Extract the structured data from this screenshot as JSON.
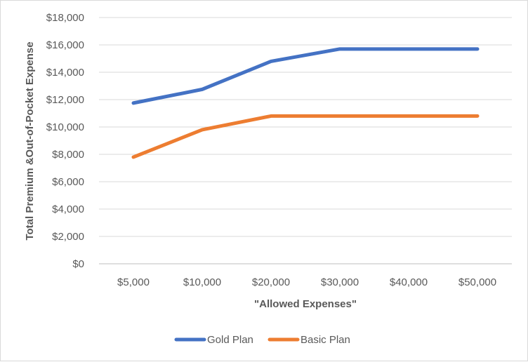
{
  "chart_data": {
    "type": "line",
    "title": "",
    "xlabel": "\"Allowed Expenses\"",
    "ylabel": "Total Premium &Out-of-Pocket Expense",
    "categories": [
      "$5,000",
      "$10,000",
      "$20,000",
      "$30,000",
      "$40,000",
      "$50,000"
    ],
    "y_ticks": [
      "$0",
      "$2,000",
      "$4,000",
      "$6,000",
      "$8,000",
      "$10,000",
      "$12,000",
      "$14,000",
      "$16,000",
      "$18,000"
    ],
    "ylim": [
      0,
      18000
    ],
    "grid": true,
    "legend_position": "bottom",
    "series": [
      {
        "name": "Gold Plan",
        "color": "#4472c4",
        "values": [
          11750,
          12750,
          14800,
          15700,
          15700,
          15700
        ]
      },
      {
        "name": "Basic Plan",
        "color": "#ed7d31",
        "values": [
          7800,
          9800,
          10800,
          10800,
          10800,
          10800
        ]
      }
    ]
  }
}
